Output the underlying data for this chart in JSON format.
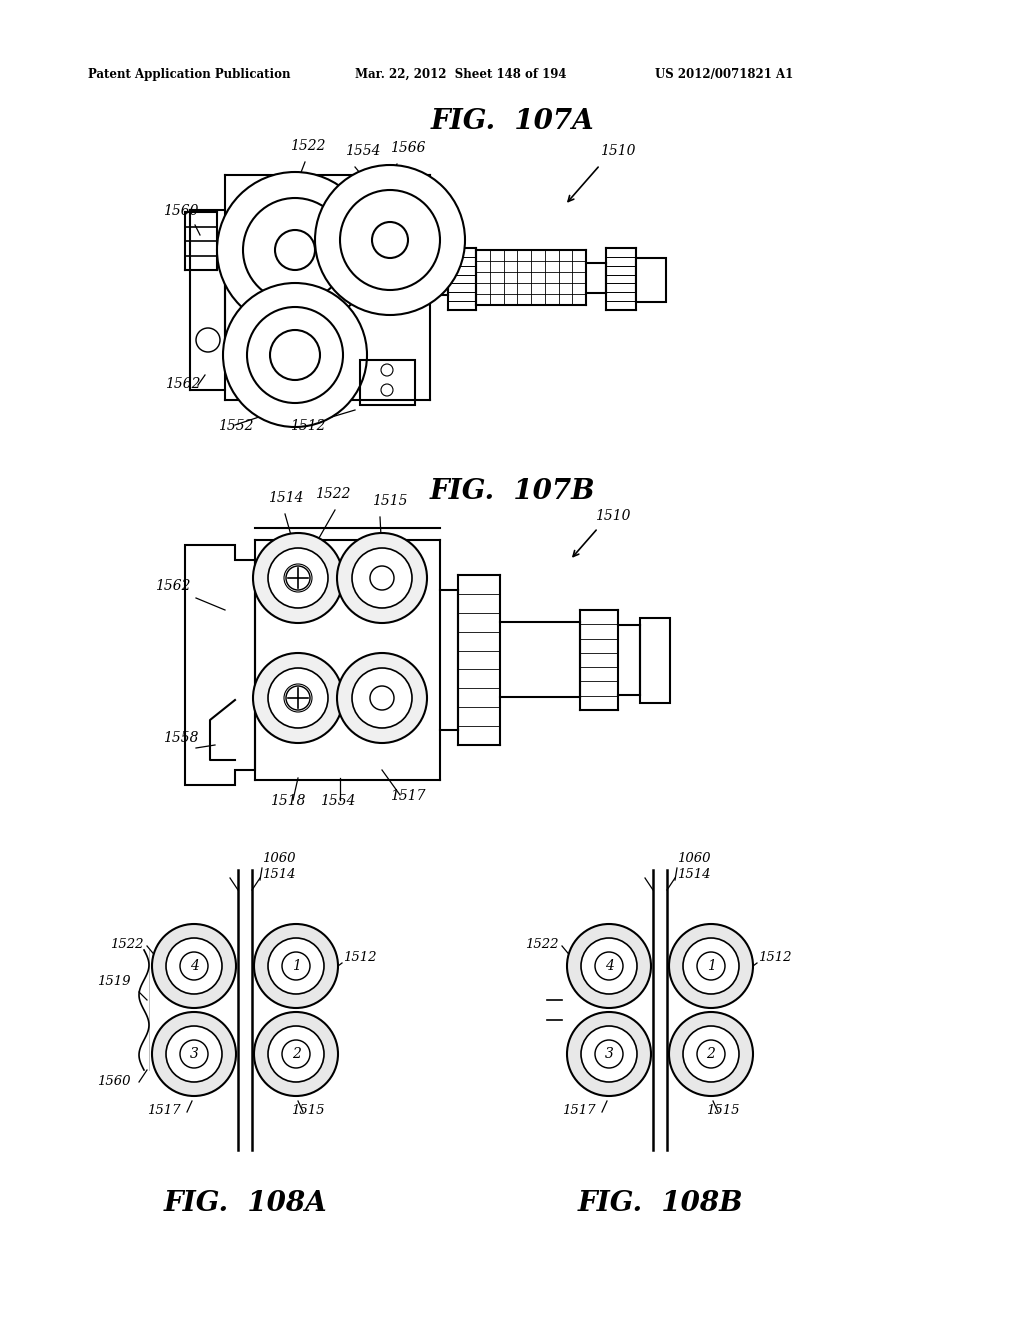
{
  "header_left": "Patent Application Publication",
  "header_mid": "Mar. 22, 2012  Sheet 148 of 194",
  "header_right": "US 2012/0071821 A1",
  "fig107a_title": "FIG.  107A",
  "fig107b_title": "FIG.  107B",
  "fig108a_title": "FIG.  108A",
  "fig108b_title": "FIG.  108B",
  "bg_color": "#ffffff",
  "line_color": "#000000"
}
